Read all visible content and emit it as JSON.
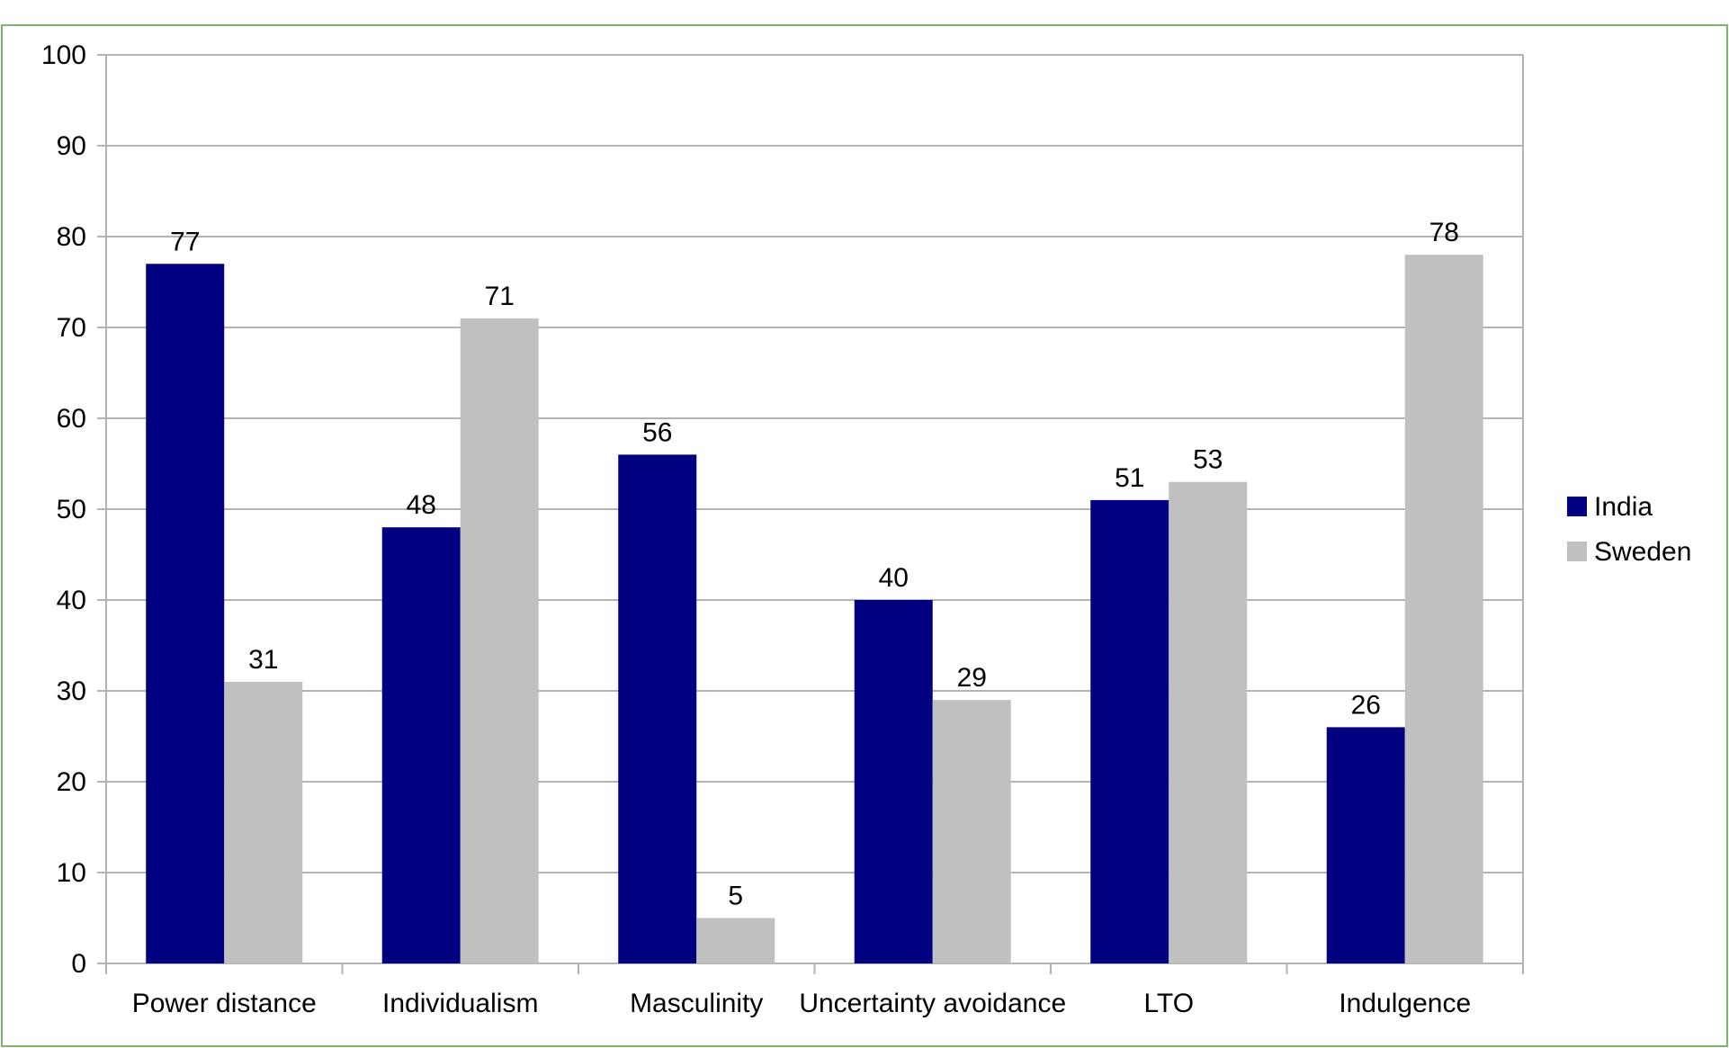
{
  "chart_data": {
    "type": "bar",
    "categories": [
      "Power distance",
      "Individualism",
      "Masculinity",
      "Uncertainty avoidance",
      "LTO",
      "Indulgence"
    ],
    "series": [
      {
        "name": "India",
        "values": [
          77,
          48,
          56,
          40,
          51,
          26
        ],
        "color": "#000080"
      },
      {
        "name": "Sweden",
        "values": [
          31,
          71,
          5,
          29,
          53,
          78
        ],
        "color": "#c0c0c0"
      }
    ],
    "title": "",
    "xlabel": "",
    "ylabel": "",
    "ylim": [
      0,
      100
    ],
    "yticks": [
      0,
      10,
      20,
      30,
      40,
      50,
      60,
      70,
      80,
      90,
      100
    ],
    "grid": true,
    "legend_position": "right",
    "data_labels": true,
    "colors": {
      "border": "#7fb16e",
      "gridline": "#b3b3b3",
      "axis": "#b3b3b3"
    }
  }
}
